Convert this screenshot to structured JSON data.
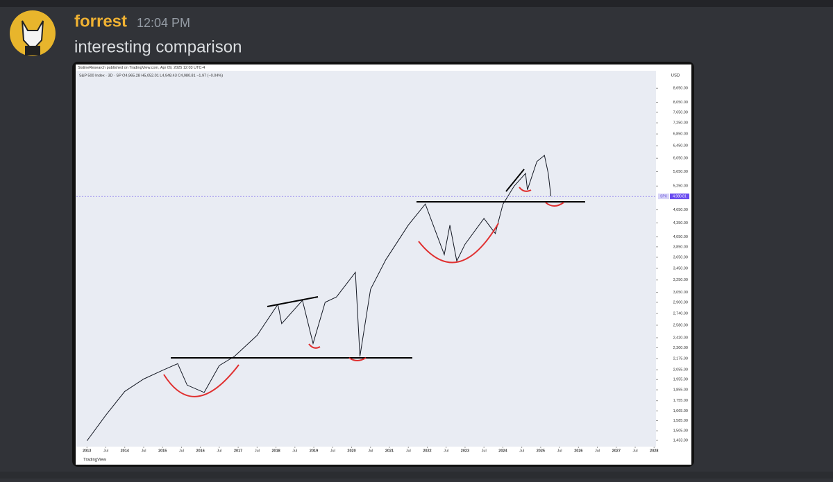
{
  "message": {
    "author": "forrest",
    "time": "12:04 PM",
    "text": "interesting comparison"
  },
  "chart_data": {
    "type": "line",
    "publisher": "SistineResearch published on TradingView.com, Apr 09, 2025 12:03 UTC-4",
    "legend_text": "S&P 500 Index · 3D · SP  O4,965.28 H5,052.01 L4,948.43 C4,980.81 −1.97 (−0.04%)",
    "currency": "USD",
    "footer": "TradingView",
    "price_tag_name": "SPX",
    "price_tag": "4,980.81",
    "color": "#131722",
    "log_scale": true,
    "x": [
      2013.0,
      2013.5,
      2014.0,
      2014.5,
      2015.0,
      2015.4,
      2015.65,
      2016.1,
      2016.5,
      2016.9,
      2017.5,
      2018.05,
      2018.15,
      2018.7,
      2018.98,
      2019.3,
      2019.6,
      2020.1,
      2020.22,
      2020.5,
      2020.9,
      2021.5,
      2021.95,
      2022.45,
      2022.6,
      2022.78,
      2023.0,
      2023.5,
      2023.8,
      2024.0,
      2024.3,
      2024.6,
      2024.65,
      2024.9,
      2025.1,
      2025.2,
      2025.27
    ],
    "values": [
      1430,
      1630,
      1840,
      1960,
      2050,
      2120,
      1900,
      1830,
      2100,
      2200,
      2450,
      2870,
      2600,
      2930,
      2350,
      2900,
      2980,
      3380,
      2200,
      3100,
      3600,
      4300,
      4790,
      3700,
      4300,
      3580,
      3900,
      4450,
      4120,
      4780,
      5250,
      5600,
      5150,
      5950,
      6140,
      5600,
      4980.81
    ],
    "xlim": [
      2012.72,
      2028.05
    ],
    "xticks": [
      2013,
      {
        "value": 2013.5,
        "label": "Jul"
      },
      2014,
      {
        "value": 2014.5,
        "label": "Jul"
      },
      2015,
      {
        "value": 2015.5,
        "label": "Jul"
      },
      2016,
      {
        "value": 2016.5,
        "label": "Jul"
      },
      2017,
      {
        "value": 2017.5,
        "label": "Jul"
      },
      2018,
      {
        "value": 2018.5,
        "label": "Jul"
      },
      2019,
      {
        "value": 2019.5,
        "label": "Jul"
      },
      2020,
      {
        "value": 2020.5,
        "label": "Jul"
      },
      2021,
      {
        "value": 2021.5,
        "label": "Jul"
      },
      2022,
      {
        "value": 2022.5,
        "label": "Jul"
      },
      2023,
      {
        "value": 2023.5,
        "label": "Jul"
      },
      2024,
      {
        "value": 2024.5,
        "label": "Jul"
      },
      2025,
      {
        "value": 2025.5,
        "label": "Jul"
      },
      2026,
      {
        "value": 2026.5,
        "label": "Jul"
      },
      2027,
      {
        "value": 2027.5,
        "label": "Jul"
      },
      2028
    ],
    "ylim": [
      1388,
      9459
    ],
    "yticks": [
      {
        "value": 1433,
        "label": "1,433.00"
      },
      {
        "value": 1505,
        "label": "1,505.00"
      },
      {
        "value": 1585,
        "label": "1,585.00"
      },
      {
        "value": 1665,
        "label": "1,665.00"
      },
      {
        "value": 1755,
        "label": "1,755.00"
      },
      {
        "value": 1855,
        "label": "1,855.00"
      },
      {
        "value": 1955,
        "label": "1,955.00"
      },
      {
        "value": 2055,
        "label": "2,055.00"
      },
      {
        "value": 2175,
        "label": "2,175.00"
      },
      {
        "value": 2300,
        "label": "2,300.00"
      },
      {
        "value": 2420,
        "label": "2,420.00"
      },
      {
        "value": 2580,
        "label": "2,580.00"
      },
      {
        "value": 2740,
        "label": "2,740.00"
      },
      {
        "value": 2900,
        "label": "2,900.00"
      },
      {
        "value": 3050,
        "label": "3,050.00"
      },
      {
        "value": 3250,
        "label": "3,250.00"
      },
      {
        "value": 3450,
        "label": "3,450.00"
      },
      {
        "value": 3650,
        "label": "3,650.00"
      },
      {
        "value": 3850,
        "label": "3,850.00"
      },
      {
        "value": 4050,
        "label": "4,050.00"
      },
      {
        "value": 4350,
        "label": "4,350.00"
      },
      {
        "value": 4650,
        "label": "4,650.00"
      },
      {
        "value": 5250,
        "label": "5,250.00"
      },
      {
        "value": 5650,
        "label": "5,650.00"
      },
      {
        "value": 6050,
        "label": "6,050.00"
      },
      {
        "value": 6450,
        "label": "6,450.00"
      },
      {
        "value": 6850,
        "label": "6,850.00"
      },
      {
        "value": 7250,
        "label": "7,250.00"
      },
      {
        "value": 7650,
        "label": "7,650.00"
      },
      {
        "value": 8050,
        "label": "8,050.00"
      },
      {
        "value": 8650,
        "label": "8,650.00"
      }
    ],
    "grid": false
  }
}
